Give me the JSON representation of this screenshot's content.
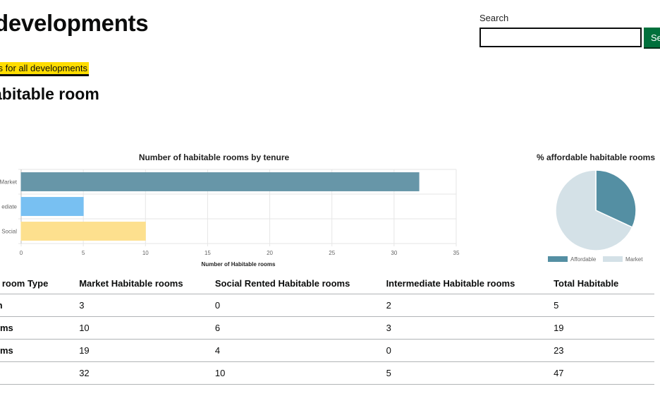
{
  "header": {
    "title": "developments",
    "search_label": "Search",
    "search_value": "",
    "search_button_label": "Se"
  },
  "stats_link": "stics for all developments",
  "section_heading": "abitable room",
  "colors": {
    "market": "#6796a8",
    "intermediate": "#78c0f2",
    "social": "#fde08e",
    "affordable": "#548fa3",
    "pie_market": "#d4e1e7",
    "search_button": "#00703c",
    "highlight": "#ffdd00"
  },
  "chart_data": [
    {
      "type": "bar",
      "orientation": "horizontal",
      "title": "Number of habitable rooms by tenure",
      "xlabel": "Number of Habitable rooms",
      "categories": [
        "Market",
        "ediate",
        "Social"
      ],
      "values": [
        32,
        5,
        10
      ],
      "xlim": [
        0,
        35
      ],
      "xticks": [
        "0",
        "5",
        "10",
        "15",
        "20",
        "25",
        "30",
        "35"
      ],
      "grid": true
    },
    {
      "type": "pie",
      "title": "% affordable habitable rooms",
      "labels": [
        "Affordable",
        "Market"
      ],
      "values": [
        15,
        32
      ],
      "legend": "bottom"
    }
  ],
  "table": {
    "headers": [
      "e room Type",
      "Market Habitable rooms",
      "Social Rented Habitable rooms",
      "Intermediate Habitable rooms",
      "Total Habitable"
    ],
    "rows": [
      [
        "m",
        "3",
        "0",
        "2",
        "5"
      ],
      [
        "oms",
        "10",
        "6",
        "3",
        "19"
      ],
      [
        "oms",
        "19",
        "4",
        "0",
        "23"
      ],
      [
        "",
        "32",
        "10",
        "5",
        "47"
      ]
    ]
  }
}
